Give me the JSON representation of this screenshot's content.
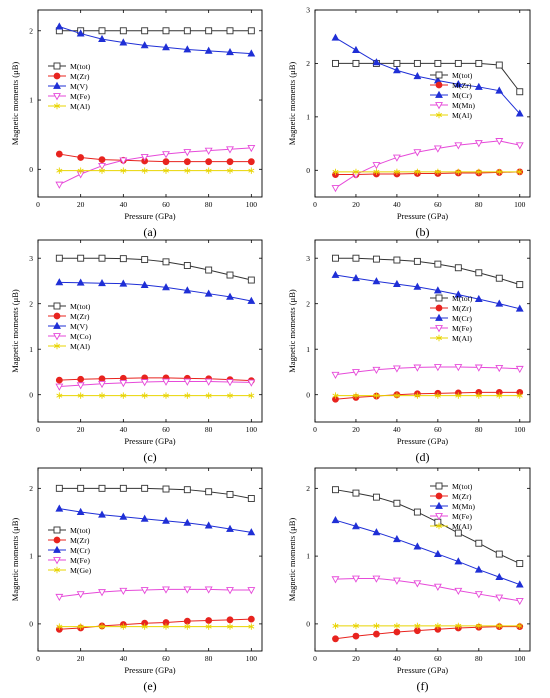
{
  "chart_data": [
    {
      "panel_label": "(a)",
      "type": "line",
      "xlabel": "Pressure (GPa)",
      "ylabel": "Magnetic moments (μB)",
      "xlim": [
        0,
        105
      ],
      "ylim": [
        -0.4,
        2.3
      ],
      "xticks": [
        0,
        20,
        40,
        60,
        80,
        100
      ],
      "yticks": [
        0,
        1,
        2
      ],
      "legend_position": "middle-left",
      "x": [
        10,
        20,
        30,
        40,
        50,
        60,
        70,
        80,
        90,
        100
      ],
      "series": [
        {
          "name": "M(tot)",
          "color": "#333333",
          "marker": "open-square",
          "values": [
            2.0,
            2.0,
            2.0,
            2.0,
            2.0,
            2.0,
            2.0,
            2.0,
            2.0,
            2.0
          ]
        },
        {
          "name": "M(Zr)",
          "color": "#e8231e",
          "marker": "filled-circle",
          "values": [
            0.22,
            0.17,
            0.14,
            0.13,
            0.12,
            0.11,
            0.11,
            0.11,
            0.11,
            0.11
          ]
        },
        {
          "name": "M(V)",
          "color": "#1f2fd6",
          "marker": "filled-triangle",
          "values": [
            2.06,
            1.96,
            1.88,
            1.83,
            1.79,
            1.76,
            1.73,
            1.71,
            1.69,
            1.67
          ]
        },
        {
          "name": "M(Fe)",
          "color": "#e64ad9",
          "marker": "open-triangle-down",
          "values": [
            -0.22,
            -0.07,
            0.05,
            0.13,
            0.18,
            0.22,
            0.25,
            0.27,
            0.29,
            0.31
          ]
        },
        {
          "name": "M(Al)",
          "color": "#e8d400",
          "marker": "star",
          "values": [
            -0.02,
            -0.02,
            -0.02,
            -0.02,
            -0.02,
            -0.02,
            -0.02,
            -0.02,
            -0.02,
            -0.02
          ]
        }
      ]
    },
    {
      "panel_label": "(b)",
      "type": "line",
      "xlabel": "Pressure (GPa)",
      "ylabel": "Magnetic moments (μB)",
      "xlim": [
        0,
        105
      ],
      "ylim": [
        -0.5,
        3.0
      ],
      "xticks": [
        0,
        20,
        40,
        60,
        80,
        100
      ],
      "yticks": [
        0,
        1,
        2,
        3
      ],
      "legend_position": "middle-right",
      "x": [
        10,
        20,
        30,
        40,
        50,
        60,
        70,
        80,
        90,
        100
      ],
      "series": [
        {
          "name": "M(tot)",
          "color": "#333333",
          "marker": "open-square",
          "values": [
            2.0,
            2.0,
            2.0,
            2.0,
            2.0,
            2.0,
            2.0,
            2.0,
            1.97,
            1.47
          ]
        },
        {
          "name": "M(Zr)",
          "color": "#e8231e",
          "marker": "filled-circle",
          "values": [
            -0.08,
            -0.08,
            -0.07,
            -0.07,
            -0.06,
            -0.06,
            -0.05,
            -0.05,
            -0.04,
            -0.03
          ]
        },
        {
          "name": "M(Cr)",
          "color": "#1f2fd6",
          "marker": "filled-triangle",
          "values": [
            2.48,
            2.25,
            2.02,
            1.87,
            1.76,
            1.68,
            1.61,
            1.56,
            1.49,
            1.06
          ]
        },
        {
          "name": "M(Mn)",
          "color": "#e64ad9",
          "marker": "open-triangle-down",
          "values": [
            -0.33,
            -0.08,
            0.1,
            0.24,
            0.34,
            0.41,
            0.47,
            0.51,
            0.55,
            0.47
          ]
        },
        {
          "name": "M(Al)",
          "color": "#e8d400",
          "marker": "star",
          "values": [
            -0.03,
            -0.03,
            -0.03,
            -0.03,
            -0.03,
            -0.03,
            -0.03,
            -0.03,
            -0.03,
            -0.03
          ]
        }
      ]
    },
    {
      "panel_label": "(c)",
      "type": "line",
      "xlabel": "Pressure (GPa)",
      "ylabel": "Magnetic moments (μB)",
      "xlim": [
        0,
        105
      ],
      "ylim": [
        -0.6,
        3.4
      ],
      "xticks": [
        0,
        20,
        40,
        60,
        80,
        100
      ],
      "yticks": [
        0,
        1,
        2,
        3
      ],
      "legend_position": "middle-left",
      "x": [
        10,
        20,
        30,
        40,
        50,
        60,
        70,
        80,
        90,
        100
      ],
      "series": [
        {
          "name": "M(tot)",
          "color": "#333333",
          "marker": "open-square",
          "values": [
            3.0,
            3.0,
            3.0,
            2.99,
            2.97,
            2.92,
            2.84,
            2.74,
            2.63,
            2.52
          ]
        },
        {
          "name": "M(Zr)",
          "color": "#e8231e",
          "marker": "filled-circle",
          "values": [
            0.32,
            0.34,
            0.35,
            0.36,
            0.37,
            0.37,
            0.36,
            0.35,
            0.33,
            0.31
          ]
        },
        {
          "name": "M(V)",
          "color": "#1f2fd6",
          "marker": "filled-triangle",
          "values": [
            2.47,
            2.46,
            2.45,
            2.44,
            2.41,
            2.36,
            2.29,
            2.22,
            2.15,
            2.06
          ]
        },
        {
          "name": "M(Co)",
          "color": "#e64ad9",
          "marker": "open-triangle-down",
          "values": [
            0.18,
            0.21,
            0.24,
            0.26,
            0.28,
            0.29,
            0.29,
            0.29,
            0.28,
            0.27
          ]
        },
        {
          "name": "M(Al)",
          "color": "#e8d400",
          "marker": "star",
          "values": [
            -0.02,
            -0.02,
            -0.02,
            -0.02,
            -0.02,
            -0.02,
            -0.02,
            -0.02,
            -0.02,
            -0.02
          ]
        }
      ]
    },
    {
      "panel_label": "(d)",
      "type": "line",
      "xlabel": "Pressure (GPa)",
      "ylabel": "Magnetic moments (μB)",
      "xlim": [
        0,
        105
      ],
      "ylim": [
        -0.6,
        3.4
      ],
      "xticks": [
        0,
        20,
        40,
        60,
        80,
        100
      ],
      "yticks": [
        0,
        1,
        2,
        3
      ],
      "legend_position": "middle-right",
      "x": [
        10,
        20,
        30,
        40,
        50,
        60,
        70,
        80,
        90,
        100
      ],
      "series": [
        {
          "name": "M(tot)",
          "color": "#333333",
          "marker": "open-square",
          "values": [
            3.0,
            3.0,
            2.98,
            2.96,
            2.93,
            2.87,
            2.79,
            2.68,
            2.56,
            2.42
          ]
        },
        {
          "name": "M(Zr)",
          "color": "#e8231e",
          "marker": "filled-circle",
          "values": [
            -0.1,
            -0.06,
            -0.03,
            0.0,
            0.02,
            0.03,
            0.04,
            0.05,
            0.05,
            0.05
          ]
        },
        {
          "name": "M(Cr)",
          "color": "#1f2fd6",
          "marker": "filled-triangle",
          "values": [
            2.63,
            2.56,
            2.49,
            2.43,
            2.37,
            2.29,
            2.2,
            2.1,
            2.0,
            1.89
          ]
        },
        {
          "name": "M(Fe)",
          "color": "#e64ad9",
          "marker": "open-triangle-down",
          "values": [
            0.44,
            0.5,
            0.55,
            0.58,
            0.6,
            0.61,
            0.61,
            0.6,
            0.59,
            0.57
          ]
        },
        {
          "name": "M(Al)",
          "color": "#e8d400",
          "marker": "star",
          "values": [
            -0.02,
            -0.02,
            -0.02,
            -0.02,
            -0.02,
            -0.02,
            -0.02,
            -0.02,
            -0.02,
            -0.02
          ]
        }
      ]
    },
    {
      "panel_label": "(e)",
      "type": "line",
      "xlabel": "Pressure (GPa)",
      "ylabel": "Magnetic moments (μB)",
      "xlim": [
        0,
        105
      ],
      "ylim": [
        -0.4,
        2.3
      ],
      "xticks": [
        0,
        20,
        40,
        60,
        80,
        100
      ],
      "yticks": [
        0,
        1,
        2
      ],
      "legend_position": "middle-left",
      "x": [
        10,
        20,
        30,
        40,
        50,
        60,
        70,
        80,
        90,
        100
      ],
      "series": [
        {
          "name": "M(tot)",
          "color": "#333333",
          "marker": "open-square",
          "values": [
            2.0,
            2.0,
            2.0,
            2.0,
            2.0,
            1.99,
            1.98,
            1.95,
            1.91,
            1.85
          ]
        },
        {
          "name": "M(Zr)",
          "color": "#e8231e",
          "marker": "filled-circle",
          "values": [
            -0.08,
            -0.06,
            -0.03,
            -0.01,
            0.01,
            0.02,
            0.04,
            0.05,
            0.06,
            0.07
          ]
        },
        {
          "name": "M(Cr)",
          "color": "#1f2fd6",
          "marker": "filled-triangle",
          "values": [
            1.7,
            1.65,
            1.61,
            1.58,
            1.55,
            1.52,
            1.49,
            1.45,
            1.4,
            1.35
          ]
        },
        {
          "name": "M(Fe)",
          "color": "#e64ad9",
          "marker": "open-triangle-down",
          "values": [
            0.4,
            0.44,
            0.47,
            0.49,
            0.5,
            0.51,
            0.51,
            0.51,
            0.5,
            0.5
          ]
        },
        {
          "name": "M(Ge)",
          "color": "#e8d400",
          "marker": "star",
          "values": [
            -0.04,
            -0.04,
            -0.04,
            -0.04,
            -0.04,
            -0.04,
            -0.04,
            -0.04,
            -0.04,
            -0.04
          ]
        }
      ]
    },
    {
      "panel_label": "(f)",
      "type": "line",
      "xlabel": "Pressure (GPa)",
      "ylabel": "Magnetic moments (μB)",
      "xlim": [
        0,
        105
      ],
      "ylim": [
        -0.4,
        2.3
      ],
      "xticks": [
        0,
        20,
        40,
        60,
        80,
        100
      ],
      "yticks": [
        0,
        1,
        2
      ],
      "legend_position": "top-right",
      "x": [
        10,
        20,
        30,
        40,
        50,
        60,
        70,
        80,
        90,
        100
      ],
      "series": [
        {
          "name": "M(tot)",
          "color": "#333333",
          "marker": "open-square",
          "values": [
            1.98,
            1.93,
            1.87,
            1.78,
            1.65,
            1.5,
            1.34,
            1.19,
            1.03,
            0.89
          ]
        },
        {
          "name": "M(Zr)",
          "color": "#e8231e",
          "marker": "filled-circle",
          "values": [
            -0.22,
            -0.18,
            -0.15,
            -0.12,
            -0.1,
            -0.08,
            -0.06,
            -0.05,
            -0.04,
            -0.04
          ]
        },
        {
          "name": "M(Mn)",
          "color": "#1f2fd6",
          "marker": "filled-triangle",
          "values": [
            1.53,
            1.44,
            1.35,
            1.25,
            1.14,
            1.03,
            0.92,
            0.8,
            0.69,
            0.58
          ]
        },
        {
          "name": "M(Fe)",
          "color": "#e64ad9",
          "marker": "open-triangle-down",
          "values": [
            0.66,
            0.67,
            0.67,
            0.64,
            0.6,
            0.55,
            0.49,
            0.44,
            0.39,
            0.34
          ]
        },
        {
          "name": "M(Al)",
          "color": "#e8d400",
          "marker": "star",
          "values": [
            -0.03,
            -0.03,
            -0.03,
            -0.03,
            -0.03,
            -0.03,
            -0.03,
            -0.03,
            -0.03,
            -0.03
          ]
        }
      ]
    }
  ]
}
